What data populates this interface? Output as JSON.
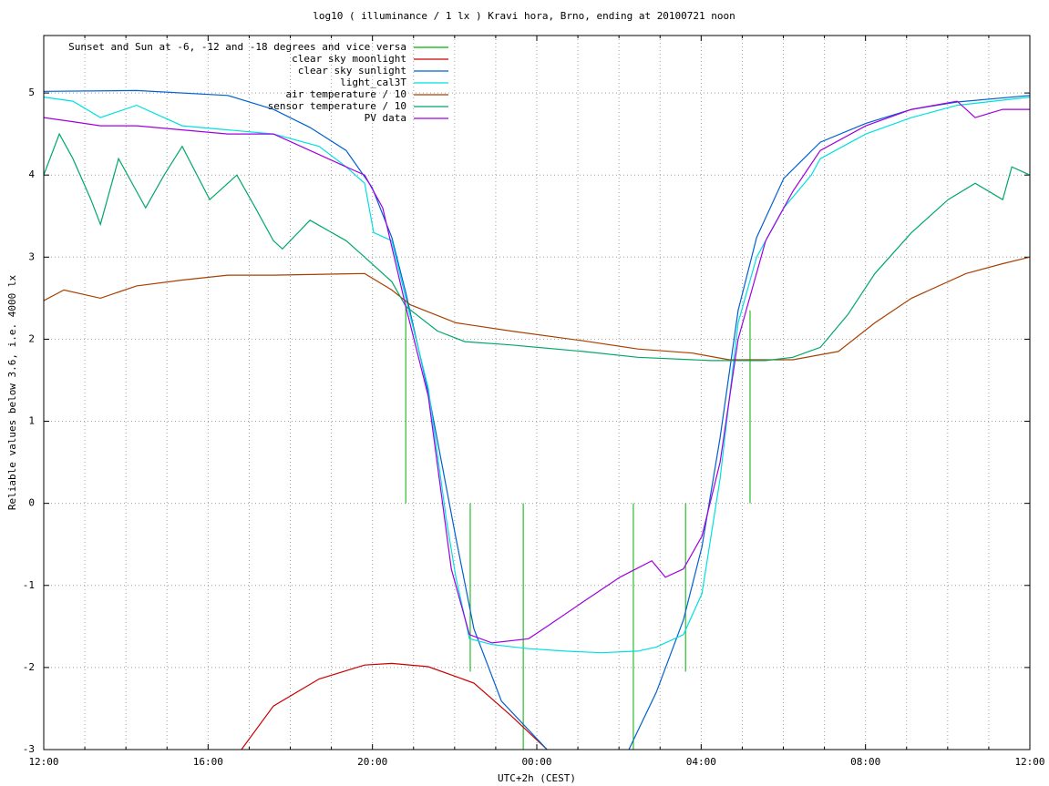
{
  "chart_data": {
    "type": "line",
    "title": "log10 ( illuminance / 1 lx ) Kravi hora, Brno, ending at 20100721 noon",
    "x_label": "UTC+2h (CEST)",
    "y_label": "Reliable values below 3.6, i.e. 4000 lx",
    "xlim": [
      0,
      24
    ],
    "ylim": [
      -3,
      5.7
    ],
    "xticks": [
      {
        "value": 0,
        "label": "12:00"
      },
      {
        "value": 4,
        "label": "16:00"
      },
      {
        "value": 8,
        "label": "20:00"
      },
      {
        "value": 12,
        "label": "00:00"
      },
      {
        "value": 16,
        "label": "04:00"
      },
      {
        "value": 20,
        "label": "08:00"
      },
      {
        "value": 24,
        "label": "12:00"
      }
    ],
    "xminorticks": [
      1,
      2,
      3,
      5,
      6,
      7,
      9,
      10,
      11,
      13,
      14,
      15,
      17,
      18,
      19,
      21,
      22,
      23
    ],
    "yticks": [
      -3,
      -2,
      -1,
      0,
      1,
      2,
      3,
      4,
      5
    ],
    "grid": true,
    "legend": "top-left",
    "series": [
      {
        "name": "Sunset and Sun at -6, -12 and -18 degrees and vice versa",
        "color": "#00b000",
        "style": "impulse",
        "x": [
          8.81,
          10.38,
          11.67,
          14.35,
          15.62,
          17.19
        ],
        "values": [
          2.4,
          -2.05,
          -3,
          -3,
          -2.05,
          2.35
        ]
      },
      {
        "name": "clear sky moonlight",
        "color": "#c80000",
        "x": [
          4.81,
          5.59,
          6.7,
          7.81,
          8.47,
          9.36,
          10.47,
          11.36,
          12.25
        ],
        "values": [
          -3,
          -2.47,
          -2.14,
          -1.97,
          -1.95,
          -1.99,
          -2.19,
          -2.58,
          -3
        ]
      },
      {
        "name": "clear sky sunlight",
        "color": "#0060d0",
        "x": [
          0,
          2.26,
          4.48,
          5.59,
          6.48,
          7.36,
          7.99,
          8.47,
          8.81,
          9.36,
          10.03,
          10.47,
          11.14,
          12.25,
          12.7,
          14.24,
          14.91,
          15.57,
          16.02,
          16.46,
          16.9,
          17.35,
          18.01,
          18.9,
          20.01,
          21.12,
          22.23,
          24
        ],
        "values": [
          5.02,
          5.03,
          4.97,
          4.8,
          4.58,
          4.3,
          3.85,
          3.24,
          2.57,
          1.35,
          -0.42,
          -1.53,
          -2.41,
          -3,
          null,
          -3,
          -2.3,
          -1.42,
          -0.53,
          0.8,
          2.35,
          3.24,
          3.96,
          4.4,
          4.63,
          4.8,
          4.89,
          4.97
        ]
      },
      {
        "name": "light_cal3T",
        "color": "#00e0e0",
        "x": [
          0,
          0.71,
          1.38,
          2.26,
          3.37,
          4.48,
          5.59,
          6.7,
          7.36,
          7.81,
          8.03,
          8.47,
          8.81,
          9.36,
          9.8,
          10.03,
          10.36,
          10.91,
          11.8,
          12.69,
          13.58,
          14.46,
          14.91,
          15.57,
          16.02,
          16.46,
          16.9,
          17.35,
          18.01,
          18.68,
          18.9,
          20.01,
          21.12,
          22.23,
          24
        ],
        "values": [
          4.95,
          4.9,
          4.7,
          4.85,
          4.6,
          4.55,
          4.5,
          4.35,
          4.1,
          3.9,
          3.3,
          3.2,
          2.5,
          1.4,
          -0.2,
          -0.9,
          -1.65,
          -1.72,
          -1.77,
          -1.8,
          -1.82,
          -1.8,
          -1.75,
          -1.6,
          -1.1,
          0.3,
          2.2,
          3.0,
          3.6,
          4.0,
          4.2,
          4.5,
          4.7,
          4.85,
          4.95
        ]
      },
      {
        "name": "air temperature / 10",
        "color": "#a84000",
        "x": [
          0,
          0.49,
          1.38,
          2.26,
          3.37,
          4.48,
          5.59,
          7.81,
          8.47,
          8.92,
          10.03,
          11.36,
          13.13,
          14.46,
          15.79,
          16.68,
          18.23,
          19.34,
          20.23,
          21.12,
          22.45,
          23.34,
          24
        ],
        "values": [
          2.47,
          2.6,
          2.5,
          2.65,
          2.72,
          2.78,
          2.78,
          2.8,
          2.6,
          2.42,
          2.2,
          2.1,
          1.98,
          1.88,
          1.83,
          1.75,
          1.75,
          1.85,
          2.2,
          2.5,
          2.8,
          2.92,
          3.0
        ]
      },
      {
        "name": "sensor temperature / 10",
        "color": "#00a868",
        "x": [
          0,
          0.38,
          0.71,
          1.15,
          1.38,
          1.82,
          2.48,
          2.93,
          3.37,
          4.04,
          4.7,
          5.15,
          5.59,
          5.81,
          6.48,
          7.36,
          7.81,
          8.47,
          8.81,
          9.58,
          10.25,
          11.36,
          13.13,
          14.46,
          16.24,
          17.57,
          18.23,
          18.9,
          19.57,
          20.23,
          21.12,
          22.01,
          22.67,
          23.34,
          23.56,
          24
        ],
        "values": [
          4.0,
          4.5,
          4.2,
          3.7,
          3.4,
          4.2,
          3.6,
          4.0,
          4.35,
          3.7,
          4.0,
          3.6,
          3.2,
          3.1,
          3.45,
          3.2,
          3.0,
          2.7,
          2.4,
          2.1,
          1.97,
          1.93,
          1.85,
          1.78,
          1.74,
          1.74,
          1.78,
          1.9,
          2.3,
          2.8,
          3.3,
          3.7,
          3.9,
          3.7,
          4.1,
          4.0
        ]
      },
      {
        "name": "PV data",
        "color": "#a000e0",
        "x": [
          0,
          0.71,
          1.38,
          2.26,
          3.37,
          4.48,
          5.59,
          6.03,
          7.36,
          7.81,
          8.25,
          8.81,
          9.36,
          9.92,
          10.36,
          10.91,
          11.8,
          12.25,
          13.13,
          14.02,
          14.8,
          15.13,
          15.57,
          16.02,
          16.46,
          16.9,
          17.57,
          18.23,
          18.9,
          20.01,
          21.12,
          22.23,
          22.67,
          23.34,
          24
        ],
        "values": [
          4.7,
          4.65,
          4.6,
          4.6,
          4.55,
          4.5,
          4.5,
          4.4,
          4.1,
          4.0,
          3.6,
          2.4,
          1.3,
          -0.8,
          -1.6,
          -1.7,
          -1.65,
          -1.5,
          -1.2,
          -0.9,
          -0.7,
          -0.9,
          -0.8,
          -0.4,
          0.5,
          2.0,
          3.2,
          3.8,
          4.3,
          4.6,
          4.8,
          4.9,
          4.7,
          4.8,
          4.8
        ]
      }
    ]
  }
}
